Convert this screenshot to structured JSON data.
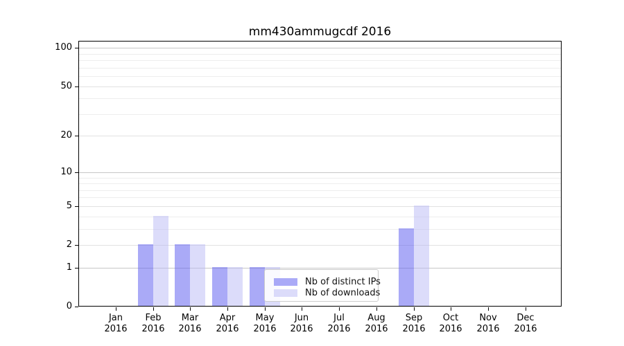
{
  "chart_data": {
    "type": "bar",
    "title": "mm430ammugcdf 2016",
    "categories": [
      "Jan 2016",
      "Feb 2016",
      "Mar 2016",
      "Apr 2016",
      "May 2016",
      "Jun 2016",
      "Jul 2016",
      "Aug 2016",
      "Sep 2016",
      "Oct 2016",
      "Nov 2016",
      "Dec 2016"
    ],
    "x_tick_line1": [
      "Jan",
      "Feb",
      "Mar",
      "Apr",
      "May",
      "Jun",
      "Jul",
      "Aug",
      "Sep",
      "Oct",
      "Nov",
      "Dec"
    ],
    "x_tick_line2": "2016",
    "yticks": [
      100,
      50,
      20,
      10,
      5,
      2,
      1,
      0
    ],
    "yscale": "log1p",
    "ylim": [
      0,
      112
    ],
    "grid": true,
    "series": [
      {
        "name": "Nb of distinct IPs",
        "slug": "distinct-ips",
        "color": "#6464f0",
        "alpha": 0.55,
        "color_on_white": "#aaaaf7",
        "values": [
          0,
          2,
          2,
          1,
          1,
          0,
          0,
          0,
          3,
          0,
          0,
          0
        ]
      },
      {
        "name": "Nb of downloads",
        "slug": "downloads",
        "color": "#b9b9f6",
        "alpha": 0.5,
        "color_on_white": "#dcdcfa",
        "values": [
          0,
          4,
          2,
          1,
          1,
          0,
          0,
          0,
          5,
          0,
          0,
          0
        ]
      }
    ],
    "legend": {
      "entries": [
        "Nb of distinct IPs",
        "Nb of downloads"
      ],
      "position": "lower center-right inside axes"
    },
    "grid_colors": {
      "decade": "#c6c6c6",
      "labeled": "#e1e1e1",
      "minor": "#ededed"
    }
  }
}
